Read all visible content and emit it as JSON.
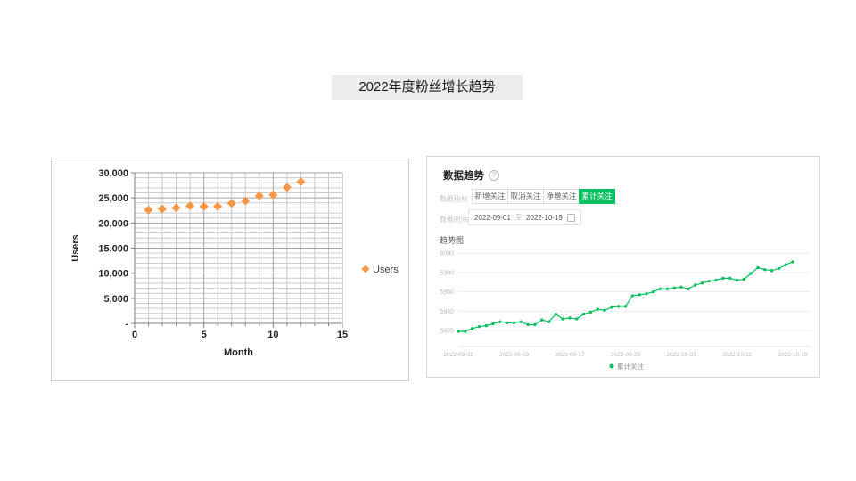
{
  "slide": {
    "title": "2022年度粉丝增长趋势"
  },
  "colors": {
    "accent_green": "#07c160",
    "marker_orange": "#F79646",
    "grid_minor": "#c9c9c9",
    "grid_major": "#a3a3a3",
    "axis_gray": "#808080",
    "light_grid": "#ededed",
    "tick_gray": "#b9b9b9"
  },
  "right_panel": {
    "header": "数据趋势",
    "help_icon": "?",
    "metric_label": "数据指标",
    "metric_tabs": [
      {
        "label": "新增关注",
        "selected": false
      },
      {
        "label": "取消关注",
        "selected": false
      },
      {
        "label": "净增关注",
        "selected": false
      },
      {
        "label": "累计关注",
        "selected": true
      }
    ],
    "time_label": "数据时间",
    "date_start": "2022-09-01",
    "date_separator": "至",
    "date_end": "2022-10-19",
    "section_label": "趋势图",
    "legend_label": "累计关注"
  },
  "chart_data": [
    {
      "type": "scatter",
      "title": "",
      "xlabel": "Month",
      "ylabel": "Users",
      "legend": "Users",
      "legend_position": "right",
      "grid": true,
      "xlim": [
        0,
        15
      ],
      "ylim": [
        0,
        30000
      ],
      "x_minor": 1,
      "x_ticks": [
        0,
        5,
        10,
        15
      ],
      "x_tick_labels": [
        "0",
        "5",
        "10",
        "15"
      ],
      "y_minor": 1000,
      "y_ticks": [
        0,
        5000,
        10000,
        15000,
        20000,
        25000,
        30000
      ],
      "y_tick_labels": [
        "-",
        "5,000",
        "10,000",
        "15,000",
        "20,000",
        "25,000",
        "30,000"
      ],
      "x": [
        1,
        2,
        3,
        4,
        5,
        6,
        7,
        8,
        9,
        10,
        11,
        12
      ],
      "series": [
        {
          "name": "Users",
          "values": [
            22600,
            22800,
            23000,
            23400,
            23300,
            23300,
            23900,
            24400,
            25400,
            25600,
            27100,
            28200
          ]
        }
      ]
    },
    {
      "type": "line",
      "title": "趋势图",
      "legend_position": "bottom",
      "grid": true,
      "ylim": [
        5905,
        6005
      ],
      "y_ticks": [
        5920,
        5940,
        5960,
        5980,
        6000
      ],
      "y_tick_labels": [
        "5920",
        "5940",
        "5960",
        "5980",
        "6000"
      ],
      "x_tick_labels": [
        "2022-09-01",
        "2022-09-09",
        "2022-09-17",
        "2022-09-25",
        "2022-10-03",
        "2022-10-11",
        "2022-10-19"
      ],
      "x_tick_every": 8,
      "series": [
        {
          "name": "累计关注",
          "values": [
            5919,
            5919,
            5922,
            5924,
            5925,
            5927,
            5929,
            5928,
            5928,
            5929,
            5926,
            5926,
            5931,
            5929,
            5937,
            5932,
            5933,
            5932,
            5937,
            5939,
            5942,
            5941,
            5944,
            5945,
            5945,
            5956,
            5957,
            5958,
            5960,
            5963,
            5963,
            5964,
            5965,
            5963,
            5967,
            5969,
            5971,
            5972,
            5974,
            5974,
            5972,
            5973,
            5979,
            5985,
            5983,
            5982,
            5984,
            5988,
            5991
          ]
        }
      ]
    }
  ]
}
